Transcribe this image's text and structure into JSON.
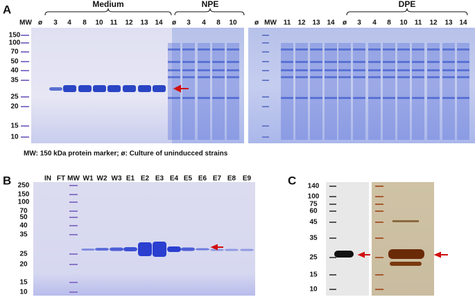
{
  "panel_a": {
    "label": "A",
    "groups": [
      "Medium",
      "NPE",
      "DPE"
    ],
    "left_lanes": [
      "MW",
      "ø",
      "3",
      "4",
      "8",
      "10",
      "11",
      "12",
      "13",
      "14",
      "ø",
      "3",
      "4",
      "8",
      "10"
    ],
    "right_lanes": [
      "ø",
      "MW",
      "11",
      "12",
      "13",
      "14",
      "ø",
      "3",
      "4",
      "8",
      "10",
      "11",
      "12",
      "13",
      "14"
    ],
    "markers": [
      "150",
      "100",
      "70",
      "50",
      "40",
      "35",
      "25",
      "20",
      "15",
      "10"
    ],
    "caption": "MW: 150 kDa protein marker; ø:  Culture  of uninducced strains"
  },
  "panel_b": {
    "label": "B",
    "lanes": [
      "IN",
      "FT",
      "MW",
      "W1",
      "W2",
      "W3",
      "E1",
      "E2",
      "E3",
      "E4",
      "E5",
      "E6",
      "E7",
      "E8",
      "E9"
    ],
    "markers": [
      "250",
      "150",
      "100",
      "70",
      "50",
      "40",
      "35",
      "25",
      "20",
      "15",
      "10"
    ]
  },
  "panel_c": {
    "label": "C",
    "markers": [
      "140",
      "100",
      "75",
      "60",
      "45",
      "35",
      "25",
      "15",
      "10"
    ]
  }
}
